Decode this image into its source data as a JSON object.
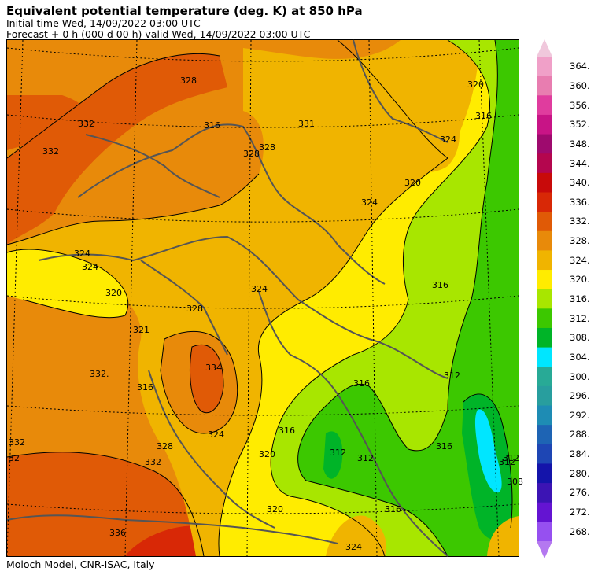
{
  "header": {
    "title": "Equivalent potential temperature (deg. K) at 850 hPa",
    "initial_time": "Initial time  Wed, 14/09/2022  03:00 UTC",
    "forecast": "Forecast  +   0 h  (000 d 00 h)  valid Wed, 14/09/2022 03:00 UTC"
  },
  "footer": "Moloch Model, CNR-ISAC, Italy",
  "legend": {
    "labels": [
      "364.",
      "360.",
      "356.",
      "352.",
      "348.",
      "344.",
      "340.",
      "336.",
      "332.",
      "328.",
      "324.",
      "320.",
      "316.",
      "312.",
      "308.",
      "304.",
      "300.",
      "296.",
      "292.",
      "288.",
      "284.",
      "280.",
      "276.",
      "272.",
      "268."
    ],
    "colors": [
      "#f0a0c8",
      "#e87db0",
      "#e03c9e",
      "#c81486",
      "#9e0a6e",
      "#b4064e",
      "#c80a0a",
      "#d82806",
      "#e05a06",
      "#e88a0a",
      "#f0b400",
      "#ffec00",
      "#a8e600",
      "#3cc800",
      "#00b428",
      "#00e6ff",
      "#28aa96",
      "#289e9e",
      "#1e8cb4",
      "#1e64b4",
      "#1e46b4",
      "#1414aa",
      "#3c14b4",
      "#6414d2",
      "#9650f0"
    ],
    "top_arrow_color": "#f0c8dc",
    "bottom_arrow_color": "#b478f0"
  },
  "map": {
    "contour_labels": [
      "328",
      "332",
      "332",
      "316",
      "331",
      "328",
      "324",
      "320",
      "316",
      "320",
      "324",
      "328",
      "324",
      "324",
      "320",
      "321",
      "328",
      "324",
      "334.",
      "332.",
      "324",
      "316",
      "316",
      "312",
      "316",
      "316",
      "312",
      "328",
      "332",
      "320",
      "316",
      "312",
      "316",
      "312",
      "336",
      "324",
      "320",
      "32",
      "332",
      "308",
      "312"
    ]
  }
}
